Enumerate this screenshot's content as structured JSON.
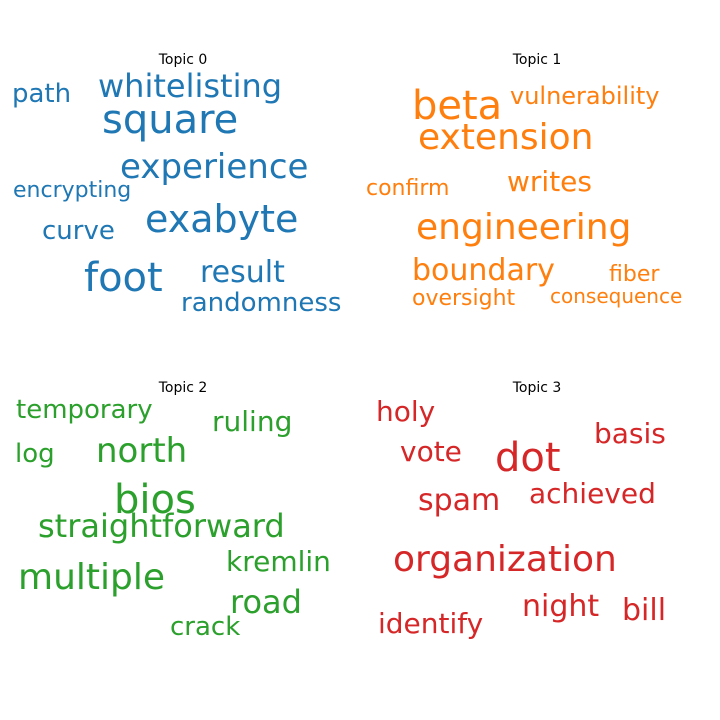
{
  "topics": [
    {
      "title": "Topic 0",
      "color": "#1f77b4",
      "words": [
        "square",
        "exabyte",
        "experience",
        "foot",
        "whitelisting",
        "result",
        "randomness",
        "path",
        "encrypting",
        "curve"
      ]
    },
    {
      "title": "Topic 1",
      "color": "#ff7f0e",
      "words": [
        "beta",
        "extension",
        "engineering",
        "vulnerability",
        "boundary",
        "writes",
        "confirm",
        "fiber",
        "oversight",
        "consequence"
      ]
    },
    {
      "title": "Topic 2",
      "color": "#2ca02c",
      "words": [
        "bios",
        "multiple",
        "straightforward",
        "north",
        "temporary",
        "ruling",
        "log",
        "kremlin",
        "road",
        "crack"
      ]
    },
    {
      "title": "Topic 3",
      "color": "#d62728",
      "words": [
        "dot",
        "organization",
        "spam",
        "achieved",
        "basis",
        "holy",
        "vote",
        "night",
        "bill",
        "identify"
      ]
    }
  ]
}
